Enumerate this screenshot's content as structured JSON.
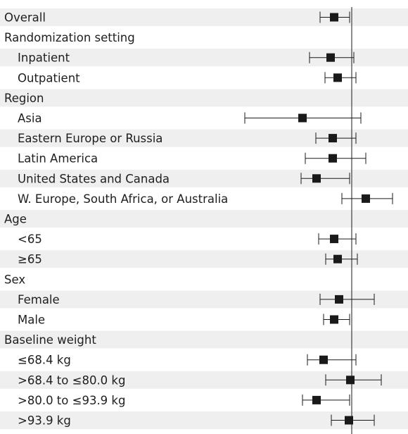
{
  "chart_data": {
    "type": "forest",
    "reference_line": true,
    "background_bands": "#efefef",
    "marker_color": "#1a1a1a",
    "rows": [
      {
        "label": "Overall",
        "kind": "group",
        "est": 0.75,
        "lo": 0.55,
        "hi": 0.97
      },
      {
        "label": "Randomization setting",
        "kind": "header"
      },
      {
        "label": "Inpatient",
        "kind": "sub",
        "est": 0.7,
        "lo": 0.4,
        "hi": 1.03
      },
      {
        "label": "Outpatient",
        "kind": "sub",
        "est": 0.8,
        "lo": 0.62,
        "hi": 1.06
      },
      {
        "label": "Region",
        "kind": "header"
      },
      {
        "label": "Asia",
        "kind": "sub",
        "est": 0.3,
        "lo": -0.52,
        "hi": 1.13
      },
      {
        "label": "Eastern Europe or Russia",
        "kind": "sub",
        "est": 0.73,
        "lo": 0.49,
        "hi": 1.06
      },
      {
        "label": "Latin America",
        "kind": "sub",
        "est": 0.73,
        "lo": 0.34,
        "hi": 1.2
      },
      {
        "label": "United States and Canada",
        "kind": "sub",
        "est": 0.5,
        "lo": 0.28,
        "hi": 0.97
      },
      {
        "label": "W. Europe, South Africa, or Australia",
        "kind": "sub",
        "est": 1.2,
        "lo": 0.86,
        "hi": 1.58
      },
      {
        "label": "Age",
        "kind": "header"
      },
      {
        "label": "<65",
        "kind": "sub",
        "est": 0.75,
        "lo": 0.53,
        "hi": 1.06
      },
      {
        "label": "≥65",
        "kind": "sub",
        "est": 0.8,
        "lo": 0.63,
        "hi": 1.08
      },
      {
        "label": "Sex",
        "kind": "header"
      },
      {
        "label": "Female",
        "kind": "sub",
        "est": 0.82,
        "lo": 0.55,
        "hi": 1.32
      },
      {
        "label": "Male",
        "kind": "sub",
        "est": 0.75,
        "lo": 0.6,
        "hi": 0.97
      },
      {
        "label": "Baseline weight",
        "kind": "header"
      },
      {
        "label": "≤68.4 kg",
        "kind": "sub",
        "est": 0.6,
        "lo": 0.37,
        "hi": 1.06
      },
      {
        "label": ">68.4 to ≤80.0 kg",
        "kind": "sub",
        "est": 0.98,
        "lo": 0.63,
        "hi": 1.42
      },
      {
        "label": ">80.0 to ≤93.9 kg",
        "kind": "sub",
        "est": 0.5,
        "lo": 0.3,
        "hi": 0.97
      },
      {
        "label": ">93.9 kg",
        "kind": "sub",
        "est": 0.96,
        "lo": 0.71,
        "hi": 1.32
      }
    ]
  }
}
